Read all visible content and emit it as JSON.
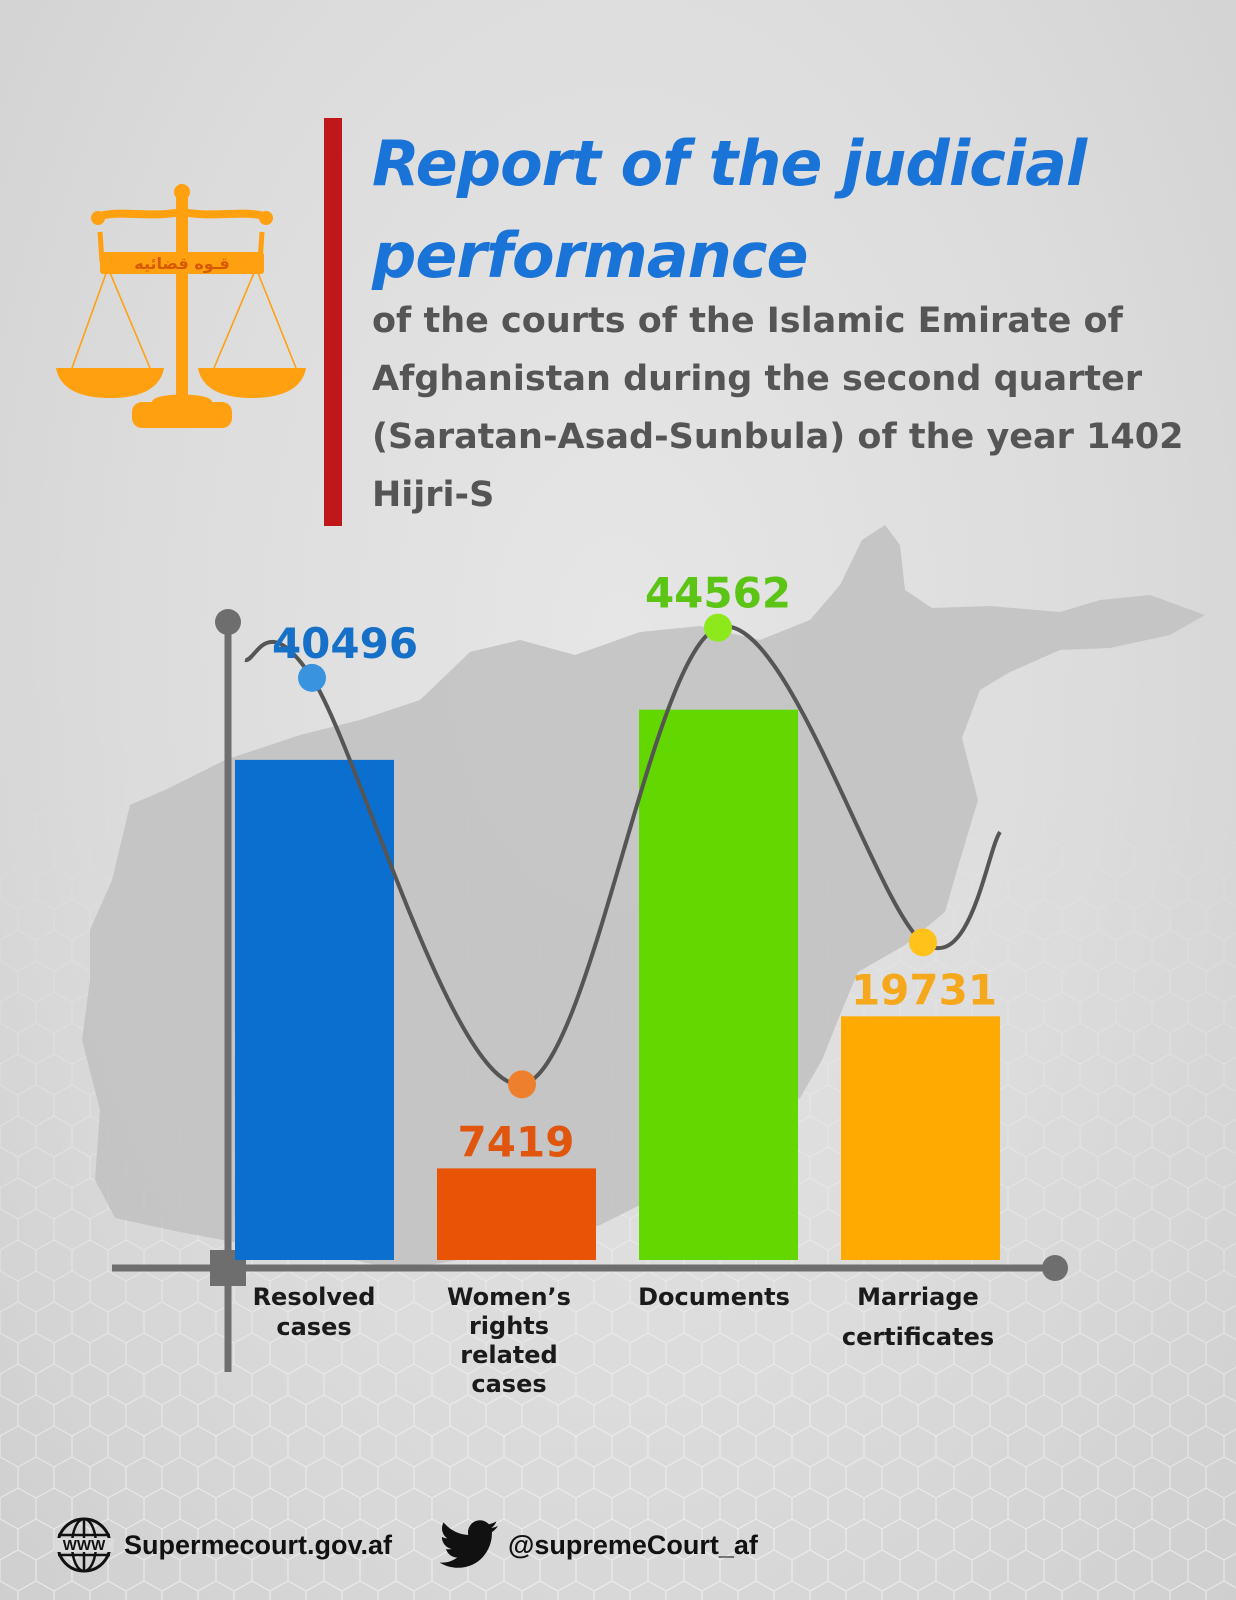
{
  "header": {
    "title": "Report of the judicial performance",
    "subtitle": "of the courts of the Islamic Emirate of Afghanistan during the second quarter (Saratan-Asad-Sunbula) of the year 1402 Hijri-S",
    "logo_text": "قـوه قضائیه"
  },
  "chart_data": {
    "type": "bar",
    "categories": [
      [
        "Resolved",
        "cases"
      ],
      [
        "Women’s",
        "rights",
        "related",
        "cases"
      ],
      [
        "Documents"
      ],
      [
        "Marriage",
        "certificates"
      ]
    ],
    "values": [
      40496,
      7419,
      44562,
      19731
    ],
    "value_labels": [
      "40496",
      "7419",
      "44562",
      "19731"
    ],
    "colors": [
      "#0a6fcf",
      "#e85306",
      "#63d800",
      "#ffaa00"
    ],
    "label_colors": [
      "#1670c7",
      "#e0560e",
      "#5cc415",
      "#f5a81b"
    ],
    "marker_colors": [
      "#3a93de",
      "#ee7f2d",
      "#8de81c",
      "#ffc21a"
    ],
    "ylim": [
      0,
      50000
    ],
    "overlay": "smooth curve through value markers",
    "title": "",
    "xlabel": "",
    "ylabel": ""
  },
  "footer": {
    "website": "Supermecourt.gov.af",
    "website_icon": "globe-www-icon",
    "twitter": "@supremeCourt_af",
    "twitter_icon": "twitter-bird-icon"
  }
}
